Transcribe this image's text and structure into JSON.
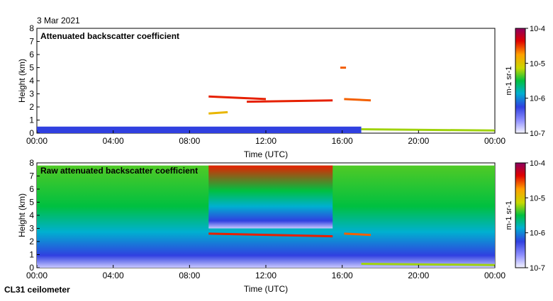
{
  "header": {
    "date": "3 Mar 2021",
    "footer": "CL31 ceilometer"
  },
  "chart_data": [
    {
      "type": "heatmap",
      "title": "Attenuated backscatter coefficient",
      "xlabel": "Time (UTC)",
      "ylabel": "Height (km)",
      "xlim": [
        0,
        24
      ],
      "ylim": [
        0,
        8
      ],
      "x_ticks": [
        "00:00",
        "04:00",
        "08:00",
        "12:00",
        "16:00",
        "20:00",
        "00:00"
      ],
      "y_ticks": [
        "0",
        "1",
        "2",
        "3",
        "4",
        "5",
        "6",
        "7",
        "8"
      ],
      "colorbar": {
        "label": "m-1 sr-1",
        "scale": "log",
        "range": [
          1e-07,
          0.0001
        ],
        "tick_labels": [
          "10-7",
          "10-6",
          "10-5",
          "10-4"
        ],
        "colors": [
          "#f4f4ff",
          "#9090ff",
          "#3040e0",
          "#00b0d0",
          "#00c040",
          "#c8d800",
          "#ffa000",
          "#e00000",
          "#8c0060"
        ]
      },
      "features": [
        {
          "name": "boundary layer",
          "t": [
            0,
            17
          ],
          "z": [
            0,
            0.5
          ],
          "level": 0.25
        },
        {
          "name": "cloud layer",
          "t": [
            9,
            12
          ],
          "z": [
            2.8,
            2.6
          ],
          "level": 0.85
        },
        {
          "name": "cloud layer",
          "t": [
            11,
            15.5
          ],
          "z": [
            2.4,
            2.5
          ],
          "level": 0.85
        },
        {
          "name": "low cloud",
          "t": [
            9,
            10
          ],
          "z": [
            1.5,
            1.6
          ],
          "level": 0.7
        },
        {
          "name": "elevated cloud",
          "t": [
            15.9,
            16.2
          ],
          "z": [
            5,
            5
          ],
          "level": 0.8
        },
        {
          "name": "cloud layer",
          "t": [
            16.1,
            17.5
          ],
          "z": [
            2.6,
            2.5
          ],
          "level": 0.8
        },
        {
          "name": "surface layer",
          "t": [
            17,
            24
          ],
          "z": [
            0.3,
            0.2
          ],
          "level": 0.6
        }
      ]
    },
    {
      "type": "heatmap",
      "title": "Raw attenuated backscatter coefficient",
      "xlabel": "Time (UTC)",
      "ylabel": "Height (km)",
      "xlim": [
        0,
        24
      ],
      "ylim": [
        0,
        8
      ],
      "x_ticks": [
        "00:00",
        "04:00",
        "08:00",
        "12:00",
        "16:00",
        "20:00",
        "00:00"
      ],
      "y_ticks": [
        "0",
        "1",
        "2",
        "3",
        "4",
        "5",
        "6",
        "7",
        "8"
      ],
      "colorbar": {
        "label": "m-1 sr-1",
        "scale": "log",
        "range": [
          1e-07,
          0.0001
        ],
        "tick_labels": [
          "10-7",
          "10-6",
          "10-5",
          "10-4"
        ],
        "colors": [
          "#f4f4ff",
          "#9090ff",
          "#3040e0",
          "#00b0d0",
          "#00c040",
          "#c8d800",
          "#ffa000",
          "#e00000",
          "#8c0060"
        ]
      },
      "features": [
        {
          "name": "noise background",
          "t": [
            0,
            24
          ],
          "z": [
            0,
            7.8
          ],
          "level": 0.55
        },
        {
          "name": "bright daytime noise",
          "t": [
            9,
            15.5
          ],
          "z": [
            3,
            7.8
          ],
          "level": 0.85
        },
        {
          "name": "cloud layer",
          "t": [
            9,
            15.5
          ],
          "z": [
            2.6,
            2.4
          ],
          "level": 0.85
        },
        {
          "name": "cloud layer",
          "t": [
            16.1,
            17.5
          ],
          "z": [
            2.6,
            2.5
          ],
          "level": 0.8
        },
        {
          "name": "surface layer",
          "t": [
            17,
            24
          ],
          "z": [
            0.3,
            0.2
          ],
          "level": 0.6
        }
      ]
    }
  ]
}
